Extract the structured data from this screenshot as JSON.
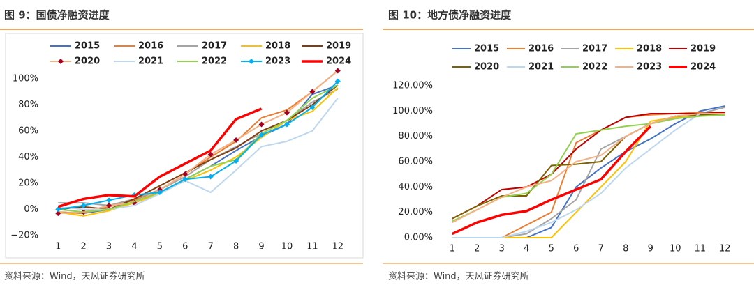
{
  "chart_data": [
    {
      "type": "line",
      "title": "图 9：国债净融资进度",
      "source": "资料来源：Wind，天风证券研究所",
      "categories": [
        "1",
        "2",
        "3",
        "4",
        "5",
        "6",
        "7",
        "8",
        "9",
        "10",
        "11",
        "12"
      ],
      "ylim": [
        -20,
        110
      ],
      "yticks": [
        {
          "value": -20,
          "label": "−20%"
        },
        {
          "value": 0,
          "label": "0%"
        },
        {
          "value": 20,
          "label": "20%"
        },
        {
          "value": 40,
          "label": "40%"
        },
        {
          "value": 60,
          "label": "60%"
        },
        {
          "value": 80,
          "label": "80%"
        },
        {
          "value": 100,
          "label": "100%"
        }
      ],
      "grid": false,
      "series": [
        {
          "name": "2015",
          "color": "#4472c4",
          "values": [
            -2,
            -3,
            0,
            5,
            13,
            23,
            33,
            45,
            56,
            65,
            88,
            95
          ]
        },
        {
          "name": "2016",
          "color": "#ed7d31",
          "values": [
            -2,
            -3,
            2,
            7,
            15,
            27,
            40,
            52,
            70,
            76,
            90,
            106
          ]
        },
        {
          "name": "2017",
          "color": "#a5a5a5",
          "values": [
            5,
            5,
            3,
            8,
            15,
            25,
            38,
            48,
            58,
            68,
            82,
            92
          ]
        },
        {
          "name": "2018",
          "color": "#ffc000",
          "values": [
            -2,
            -5,
            -1,
            5,
            12,
            22,
            30,
            40,
            55,
            68,
            75,
            93
          ]
        },
        {
          "name": "2019",
          "color": "#843c0c",
          "values": [
            0,
            2,
            0,
            8,
            18,
            28,
            38,
            47,
            60,
            68,
            80,
            95
          ]
        },
        {
          "name": "2020",
          "color": "#f4b183",
          "marker": "diamond",
          "marker_color": "#a50021",
          "values": [
            -3,
            -2,
            3,
            5,
            15,
            27,
            42,
            53,
            65,
            74,
            90,
            106
          ]
        },
        {
          "name": "2021",
          "color": "#bdd7ee",
          "values": [
            2,
            0,
            0,
            3,
            12,
            22,
            13,
            30,
            48,
            52,
            60,
            85
          ]
        },
        {
          "name": "2022",
          "color": "#92d050",
          "values": [
            0,
            -2,
            0,
            6,
            13,
            23,
            33,
            38,
            58,
            68,
            85,
            95
          ]
        },
        {
          "name": "2023",
          "color": "#00b0f0",
          "marker": "diamond",
          "marker_color": "#00b0f0",
          "values": [
            0,
            3,
            7,
            11,
            13,
            23,
            25,
            37,
            57,
            65,
            78,
            98
          ]
        },
        {
          "name": "2024",
          "color": "#ff0000",
          "linewidth": 3.5,
          "values": [
            2,
            8,
            11,
            10,
            25,
            35,
            45,
            69,
            77,
            null,
            null,
            null
          ]
        }
      ]
    },
    {
      "type": "line",
      "title": "图 10：地方债净融资进度",
      "source": "资料来源：Wind，天风证券研究所",
      "categories": [
        "1",
        "2",
        "3",
        "4",
        "5",
        "6",
        "7",
        "8",
        "9",
        "10",
        "11",
        "12"
      ],
      "ylim": [
        0,
        120
      ],
      "yticks": [
        {
          "value": 0,
          "label": "0.00%"
        },
        {
          "value": 20,
          "label": "20.00%"
        },
        {
          "value": 40,
          "label": "40.00%"
        },
        {
          "value": 60,
          "label": "60.00%"
        },
        {
          "value": 80,
          "label": "80.00%"
        },
        {
          "value": 100,
          "label": "100.00%"
        },
        {
          "value": 120,
          "label": "120.00%"
        }
      ],
      "grid": false,
      "series": [
        {
          "name": "2015",
          "color": "#4472c4",
          "values": [
            0,
            0,
            0,
            0,
            8,
            40,
            55,
            68,
            78,
            90,
            100,
            104
          ]
        },
        {
          "name": "2016",
          "color": "#ed7d31",
          "values": [
            0,
            0,
            0,
            10,
            20,
            75,
            85,
            95,
            97,
            98,
            99,
            99
          ]
        },
        {
          "name": "2017",
          "color": "#a5a5a5",
          "values": [
            0,
            0,
            0,
            3,
            15,
            30,
            70,
            80,
            90,
            95,
            98,
            103
          ]
        },
        {
          "name": "2018",
          "color": "#ffc000",
          "values": [
            0,
            0,
            0,
            0,
            0,
            20,
            40,
            60,
            92,
            95,
            97,
            98
          ]
        },
        {
          "name": "2019",
          "color": "#c00000",
          "values": [
            15,
            25,
            38,
            40,
            50,
            70,
            85,
            95,
            98,
            98,
            98,
            99
          ]
        },
        {
          "name": "2020",
          "color": "#7f6000",
          "values": [
            15,
            25,
            33,
            33,
            57,
            58,
            60,
            80,
            90,
            96,
            97,
            97
          ]
        },
        {
          "name": "2021",
          "color": "#bdd7ee",
          "values": [
            0,
            0,
            0,
            5,
            12,
            22,
            35,
            55,
            70,
            85,
            98,
            98
          ]
        },
        {
          "name": "2022",
          "color": "#92d050",
          "values": [
            13,
            22,
            32,
            35,
            50,
            82,
            85,
            88,
            90,
            94,
            96,
            97
          ]
        },
        {
          "name": "2023",
          "color": "#f4b183",
          "values": [
            12,
            22,
            32,
            40,
            45,
            60,
            65,
            80,
            90,
            96,
            98,
            98
          ]
        },
        {
          "name": "2024",
          "color": "#ff0000",
          "linewidth": 3.5,
          "values": [
            3,
            12,
            18,
            21,
            30,
            38,
            46,
            68,
            88,
            null,
            null,
            null
          ]
        }
      ]
    }
  ]
}
